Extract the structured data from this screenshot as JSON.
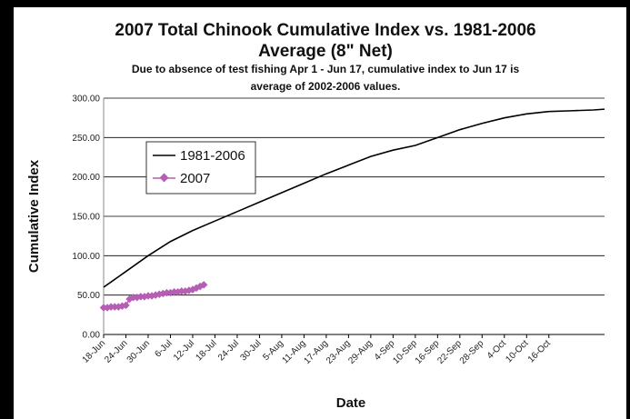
{
  "chart_data": {
    "type": "line",
    "title_line1": "2007 Total Chinook  Cumulative Index vs. 1981-2006",
    "title_line2": "Average (8\" Net)",
    "subtitle_line1": "Due to absence of test fishing Apr 1 - Jun 17, cumulative index to Jun 17 is",
    "subtitle_line2": "average of 2002-2006 values.",
    "xlabel": "Date",
    "ylabel": "Cumulative Index",
    "ylim": [
      0,
      300
    ],
    "yticks": [
      "0.00",
      "50.00",
      "100.00",
      "150.00",
      "200.00",
      "250.00",
      "300.00"
    ],
    "x_start": "18-Jun",
    "x_end": "31-Oct",
    "xtick_labels": [
      "18-Jun",
      "24-Jun",
      "30-Jun",
      "6-Jul",
      "12-Jul",
      "18-Jul",
      "24-Jul",
      "30-Jul",
      "5-Aug",
      "11-Aug",
      "17-Aug",
      "23-Aug",
      "29-Aug",
      "4-Sep",
      "10-Sep",
      "16-Sep",
      "22-Sep",
      "28-Sep",
      "4-Oct",
      "10-Oct",
      "16-Oct"
    ],
    "grid": "horizontal",
    "legend_position": "upper-left",
    "colors": {
      "avg": "#000000",
      "y2007": "#b45fb4"
    },
    "series": [
      {
        "name": "1981-2006",
        "x": [
          "18-Jun",
          "24-Jun",
          "30-Jun",
          "6-Jul",
          "12-Jul",
          "18-Jul",
          "24-Jul",
          "30-Jul",
          "5-Aug",
          "11-Aug",
          "17-Aug",
          "23-Aug",
          "29-Aug",
          "4-Sep",
          "10-Sep",
          "16-Sep",
          "22-Sep",
          "28-Sep",
          "4-Oct",
          "10-Oct",
          "16-Oct",
          "22-Oct",
          "28-Oct",
          "31-Oct"
        ],
        "values": [
          60,
          80,
          100,
          118,
          132,
          144,
          156,
          168,
          180,
          192,
          204,
          215,
          226,
          234,
          240,
          250,
          260,
          268,
          275,
          280,
          283,
          284,
          285,
          286
        ]
      },
      {
        "name": "2007",
        "x": [
          "18-Jun",
          "19-Jun",
          "20-Jun",
          "21-Jun",
          "22-Jun",
          "23-Jun",
          "24-Jun",
          "25-Jun",
          "26-Jun",
          "27-Jun",
          "28-Jun",
          "29-Jun",
          "30-Jun",
          "1-Jul",
          "2-Jul",
          "3-Jul",
          "4-Jul",
          "5-Jul",
          "6-Jul",
          "7-Jul",
          "8-Jul",
          "9-Jul",
          "10-Jul",
          "11-Jul",
          "12-Jul",
          "13-Jul",
          "14-Jul",
          "15-Jul"
        ],
        "values": [
          34,
          34,
          35,
          35,
          35,
          36,
          37,
          45,
          47,
          47,
          48,
          48,
          49,
          49,
          50,
          51,
          52,
          53,
          53,
          54,
          54,
          55,
          55,
          56,
          57,
          59,
          61,
          63
        ]
      }
    ]
  }
}
